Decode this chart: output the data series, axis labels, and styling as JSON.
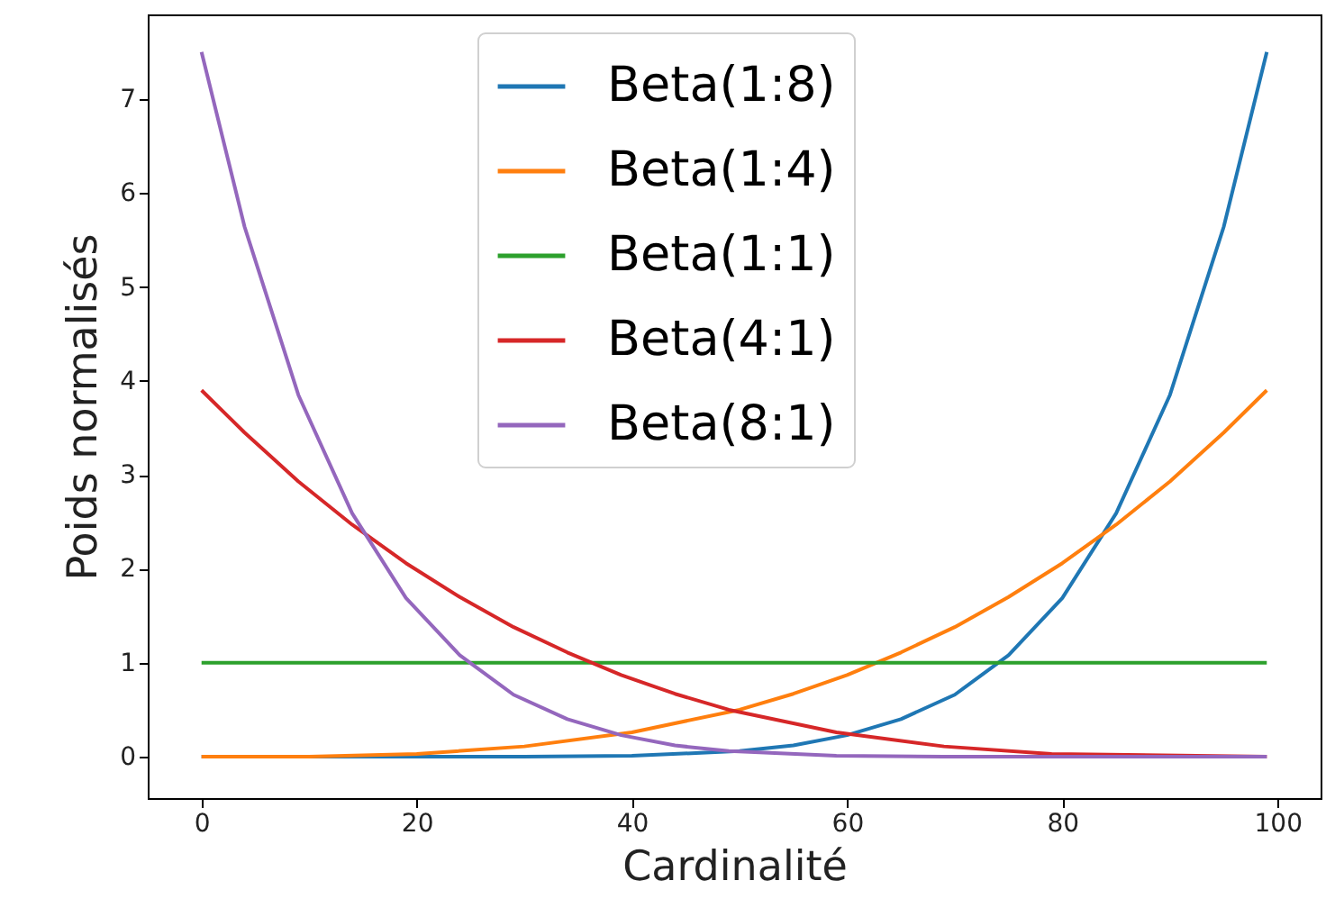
{
  "chart_data": {
    "type": "line",
    "xlabel": "Cardinalité",
    "ylabel": "Poids normalisés",
    "xlim": [
      -5,
      104
    ],
    "ylim": [
      -0.44,
      7.9
    ],
    "xticks": [
      0,
      20,
      40,
      60,
      80,
      100
    ],
    "yticks": [
      0,
      1,
      2,
      3,
      4,
      5,
      6,
      7
    ],
    "grid": false,
    "legend": "top",
    "marker": "none",
    "line_style": "solid",
    "series": [
      {
        "name": "Beta(1:8)",
        "color": "#1f77b4",
        "x": [
          0,
          10,
          20,
          30,
          40,
          50,
          55,
          60,
          65,
          70,
          75,
          80,
          85,
          90,
          95,
          99
        ],
        "values": [
          0,
          0,
          0,
          0,
          0.01,
          0.06,
          0.12,
          0.23,
          0.4,
          0.66,
          1.08,
          1.69,
          2.59,
          3.85,
          5.64,
          7.5
        ]
      },
      {
        "name": "Beta(1:4)",
        "color": "#ff7f0e",
        "x": [
          0,
          10,
          20,
          30,
          40,
          50,
          55,
          60,
          65,
          70,
          75,
          80,
          85,
          90,
          95,
          99
        ],
        "values": [
          0,
          0,
          0.03,
          0.11,
          0.26,
          0.5,
          0.67,
          0.87,
          1.11,
          1.38,
          1.7,
          2.06,
          2.47,
          2.93,
          3.45,
          3.9
        ]
      },
      {
        "name": "Beta(1:1)",
        "color": "#2ca02c",
        "x": [
          0,
          99
        ],
        "values": [
          1,
          1
        ]
      },
      {
        "name": "Beta(4:1)",
        "color": "#d62728",
        "x": [
          0,
          4,
          9,
          14,
          19,
          24,
          29,
          34,
          39,
          44,
          49,
          59,
          69,
          79,
          99
        ],
        "values": [
          3.9,
          3.45,
          2.93,
          2.47,
          2.06,
          1.7,
          1.38,
          1.11,
          0.87,
          0.67,
          0.5,
          0.26,
          0.11,
          0.03,
          0
        ]
      },
      {
        "name": "Beta(8:1)",
        "color": "#9467bd",
        "x": [
          0,
          4,
          9,
          14,
          19,
          24,
          29,
          34,
          39,
          44,
          49,
          59,
          69,
          79,
          89,
          99
        ],
        "values": [
          7.5,
          5.64,
          3.85,
          2.59,
          1.69,
          1.08,
          0.66,
          0.4,
          0.23,
          0.12,
          0.06,
          0.01,
          0,
          0,
          0,
          0
        ]
      }
    ]
  }
}
